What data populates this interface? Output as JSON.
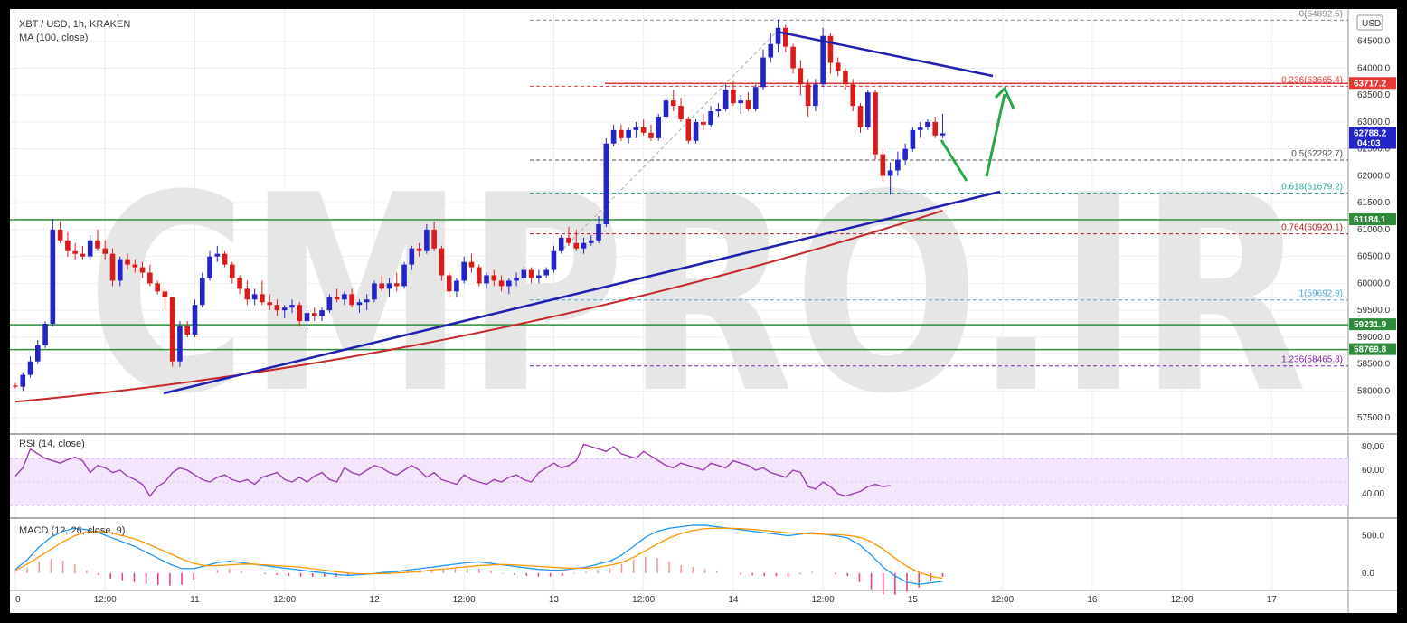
{
  "header": {
    "symbol_line": "XBT / USD, 1h, KRAKEN",
    "ma_line": "MA (100, close)",
    "currency_badge": "USD",
    "rsi_label": "RSI (14, close)",
    "macd_label": "MACD (12, 26, close, 9)"
  },
  "watermark": "CMPRO.IR",
  "chart_data": {
    "type": "candlestick",
    "price_axis": {
      "ylim": [
        57200,
        65100
      ],
      "ticks": [
        57500,
        58000,
        58500,
        59000,
        59500,
        60000,
        60500,
        61000,
        61500,
        62000,
        62500,
        63000,
        63500,
        64000,
        64500
      ],
      "tick_labels": [
        "57500.0",
        "58000.0",
        "58500.0",
        "59000.0",
        "59500.0",
        "60000.0",
        "60500.0",
        "61000.0",
        "61500.0",
        "62000.0",
        "62500.0",
        "63000.0",
        "63500.0",
        "64000.0",
        "64500.0"
      ]
    },
    "time_axis": {
      "labels": [
        "0",
        "12:00",
        "11",
        "12:00",
        "12",
        "12:00",
        "13",
        "12:00",
        "14",
        "12:00",
        "15",
        "12:00",
        "16",
        "12:00",
        "17"
      ],
      "bars_per_label": 12
    },
    "price_tags": [
      {
        "value": 63717.2,
        "text": "63717.2",
        "color": "#e53935"
      },
      {
        "value": 62788.2,
        "text": "62788.2",
        "sub": "04:03",
        "color": "#2424c8"
      },
      {
        "value": 61184.1,
        "text": "61184.1",
        "color": "#2e8b3a"
      },
      {
        "value": 59231.9,
        "text": "59231.9",
        "color": "#2e8b3a"
      },
      {
        "value": 58769.8,
        "text": "58769.8",
        "color": "#2e8b3a"
      }
    ],
    "fibonacci": [
      {
        "ratio": "0",
        "value": 64892.5,
        "text": "0(64892.5)",
        "color": "#888888"
      },
      {
        "ratio": "0.236",
        "value": 63665.4,
        "text": "0.236(63665.4)",
        "color": "#e53935"
      },
      {
        "ratio": "0.5",
        "value": 62292.7,
        "text": "0.5(62292.7)",
        "color": "#555555"
      },
      {
        "ratio": "0.618",
        "value": 61679.2,
        "text": "0.618(61679.2)",
        "color": "#26a69a"
      },
      {
        "ratio": "0.764",
        "value": 60920.1,
        "text": "0.764(60920.1)",
        "color": "#b71c1c"
      },
      {
        "ratio": "1",
        "value": 59692.9,
        "text": "1(59692.9)",
        "color": "#4fa3d8"
      },
      {
        "ratio": "1.236",
        "value": 58465.8,
        "text": "1.236(58465.8)",
        "color": "#7b1fa2"
      }
    ],
    "horizontal_levels": [
      {
        "value": 63717.2,
        "color": "#e53935"
      },
      {
        "value": 61184.1,
        "color": "#2e8b3a"
      },
      {
        "value": 59231.9,
        "color": "#2e8b3a"
      },
      {
        "value": 58769.8,
        "color": "#2e8b3a"
      }
    ],
    "candles": [
      [
        58100,
        58150,
        58050,
        58080
      ],
      [
        58080,
        58350,
        58000,
        58300
      ],
      [
        58300,
        58650,
        58250,
        58550
      ],
      [
        58550,
        58950,
        58500,
        58850
      ],
      [
        58850,
        59300,
        58800,
        59250
      ],
      [
        59250,
        61200,
        59200,
        61000
      ],
      [
        61000,
        61150,
        60750,
        60800
      ],
      [
        60800,
        60950,
        60500,
        60600
      ],
      [
        60600,
        60750,
        60450,
        60550
      ],
      [
        60550,
        60700,
        60450,
        60500
      ],
      [
        60500,
        60900,
        60450,
        60800
      ],
      [
        60800,
        61000,
        60600,
        60650
      ],
      [
        60650,
        60800,
        60450,
        60550
      ],
      [
        60550,
        60650,
        59950,
        60050
      ],
      [
        60050,
        60500,
        59950,
        60450
      ],
      [
        60450,
        60550,
        60250,
        60350
      ],
      [
        60350,
        60450,
        60200,
        60300
      ],
      [
        60300,
        60400,
        60100,
        60200
      ],
      [
        60200,
        60350,
        59950,
        60000
      ],
      [
        60000,
        60050,
        59800,
        59850
      ],
      [
        59850,
        59900,
        59500,
        59750
      ],
      [
        59750,
        59750,
        58450,
        58550
      ],
      [
        58550,
        59300,
        58450,
        59200
      ],
      [
        59200,
        59300,
        59000,
        59050
      ],
      [
        59050,
        59700,
        59000,
        59600
      ],
      [
        59600,
        60200,
        59550,
        60100
      ],
      [
        60100,
        60600,
        60050,
        60500
      ],
      [
        60500,
        60700,
        60400,
        60550
      ],
      [
        60550,
        60600,
        60300,
        60350
      ],
      [
        60350,
        60400,
        60000,
        60100
      ],
      [
        60100,
        60150,
        59800,
        59900
      ],
      [
        59900,
        60050,
        59600,
        59700
      ],
      [
        59700,
        59900,
        59600,
        59800
      ],
      [
        59800,
        60050,
        59600,
        59650
      ],
      [
        59650,
        59800,
        59500,
        59600
      ],
      [
        59600,
        59700,
        59400,
        59500
      ],
      [
        59500,
        59600,
        59350,
        59550
      ],
      [
        59550,
        59700,
        59450,
        59600
      ],
      [
        59600,
        59650,
        59200,
        59300
      ],
      [
        59300,
        59500,
        59200,
        59450
      ],
      [
        59450,
        59550,
        59300,
        59400
      ],
      [
        59400,
        59550,
        59300,
        59500
      ],
      [
        59500,
        59800,
        59450,
        59750
      ],
      [
        59750,
        59900,
        59650,
        59700
      ],
      [
        59700,
        59850,
        59600,
        59800
      ],
      [
        59800,
        59900,
        59550,
        59600
      ],
      [
        59600,
        59700,
        59450,
        59650
      ],
      [
        59650,
        59800,
        59500,
        59700
      ],
      [
        59700,
        60050,
        59650,
        60000
      ],
      [
        60000,
        60150,
        59850,
        59900
      ],
      [
        59900,
        60100,
        59750,
        60000
      ],
      [
        60000,
        60200,
        59850,
        59950
      ],
      [
        59950,
        60400,
        59900,
        60350
      ],
      [
        60350,
        60700,
        60250,
        60650
      ],
      [
        60650,
        60750,
        60500,
        60600
      ],
      [
        60600,
        61100,
        60550,
        61000
      ],
      [
        61000,
        61150,
        60600,
        60650
      ],
      [
        60650,
        60700,
        60050,
        60150
      ],
      [
        60150,
        60200,
        59750,
        59850
      ],
      [
        59850,
        60100,
        59750,
        60050
      ],
      [
        60050,
        60500,
        60000,
        60400
      ],
      [
        60400,
        60550,
        60200,
        60300
      ],
      [
        60300,
        60350,
        59950,
        60000
      ],
      [
        60000,
        60200,
        59900,
        60150
      ],
      [
        60150,
        60250,
        59950,
        60050
      ],
      [
        60050,
        60150,
        59850,
        59950
      ],
      [
        59950,
        60100,
        59800,
        60050
      ],
      [
        60050,
        60200,
        59950,
        60100
      ],
      [
        60100,
        60300,
        60050,
        60250
      ],
      [
        60250,
        60300,
        60000,
        60100
      ],
      [
        60100,
        60250,
        60000,
        60150
      ],
      [
        60150,
        60300,
        60100,
        60250
      ],
      [
        60250,
        60700,
        60200,
        60600
      ],
      [
        60600,
        60900,
        60550,
        60850
      ],
      [
        60850,
        61050,
        60700,
        60750
      ],
      [
        60750,
        61000,
        60600,
        60650
      ],
      [
        60650,
        60850,
        60550,
        60750
      ],
      [
        60750,
        60900,
        60700,
        60800
      ],
      [
        60800,
        61250,
        60750,
        61100
      ],
      [
        61100,
        62700,
        61050,
        62600
      ],
      [
        62600,
        62950,
        62550,
        62850
      ],
      [
        62850,
        62950,
        62650,
        62700
      ],
      [
        62700,
        62900,
        62600,
        62850
      ],
      [
        62850,
        63000,
        62700,
        62900
      ],
      [
        62900,
        63050,
        62750,
        62800
      ],
      [
        62800,
        62950,
        62650,
        62700
      ],
      [
        62700,
        63150,
        62650,
        63100
      ],
      [
        63100,
        63500,
        63000,
        63400
      ],
      [
        63400,
        63600,
        63200,
        63300
      ],
      [
        63300,
        63450,
        63000,
        63050
      ],
      [
        63050,
        63100,
        62600,
        62650
      ],
      [
        62650,
        63050,
        62600,
        63000
      ],
      [
        63000,
        63150,
        62850,
        62950
      ],
      [
        62950,
        63300,
        62900,
        63200
      ],
      [
        63200,
        63350,
        63100,
        63250
      ],
      [
        63250,
        63700,
        63200,
        63600
      ],
      [
        63600,
        63750,
        63300,
        63350
      ],
      [
        63350,
        63500,
        63150,
        63400
      ],
      [
        63400,
        63550,
        63200,
        63250
      ],
      [
        63250,
        63700,
        63200,
        63650
      ],
      [
        63650,
        64350,
        63600,
        64200
      ],
      [
        64200,
        64650,
        64100,
        64450
      ],
      [
        64450,
        64900,
        64300,
        64750
      ],
      [
        64750,
        64800,
        64300,
        64400
      ],
      [
        64400,
        64450,
        63900,
        64000
      ],
      [
        64000,
        64150,
        63500,
        63700
      ],
      [
        63700,
        63800,
        63100,
        63300
      ],
      [
        63300,
        63800,
        63200,
        63700
      ],
      [
        63700,
        64750,
        63650,
        64600
      ],
      [
        64600,
        64650,
        63900,
        64100
      ],
      [
        64100,
        64200,
        63850,
        63950
      ],
      [
        63950,
        64000,
        63600,
        63700
      ],
      [
        63700,
        63800,
        63200,
        63300
      ],
      [
        63300,
        63350,
        62800,
        62900
      ],
      [
        62900,
        63600,
        62850,
        63550
      ],
      [
        63550,
        63600,
        62300,
        62400
      ],
      [
        62400,
        62500,
        61900,
        62000
      ],
      [
        62000,
        62250,
        61650,
        62100
      ],
      [
        62100,
        62450,
        62000,
        62300
      ],
      [
        62300,
        62600,
        62200,
        62500
      ],
      [
        62500,
        62900,
        62450,
        62850
      ],
      [
        62850,
        63000,
        62700,
        62900
      ],
      [
        62900,
        63050,
        62850,
        63000
      ],
      [
        63000,
        63100,
        62700,
        62750
      ],
      [
        62750,
        63150,
        62700,
        62790
      ]
    ],
    "ma100": {
      "start": 57800,
      "end": 61350
    },
    "rsi": {
      "ylim": [
        20,
        90
      ],
      "ticks": [
        40,
        60,
        80
      ],
      "tick_labels": [
        "40.00",
        "60.00",
        "80.00"
      ],
      "band": [
        30,
        70
      ],
      "values": [
        55,
        62,
        78,
        74,
        70,
        68,
        66,
        69,
        71,
        68,
        58,
        64,
        62,
        58,
        60,
        55,
        52,
        48,
        38,
        46,
        50,
        58,
        62,
        60,
        56,
        52,
        50,
        54,
        56,
        52,
        50,
        52,
        48,
        54,
        56,
        58,
        52,
        50,
        54,
        50,
        55,
        58,
        52,
        50,
        62,
        58,
        56,
        60,
        64,
        62,
        58,
        56,
        60,
        64,
        60,
        54,
        58,
        52,
        50,
        48,
        56,
        52,
        50,
        48,
        52,
        50,
        54,
        56,
        52,
        50,
        58,
        62,
        66,
        62,
        64,
        68,
        82,
        80,
        78,
        76,
        80,
        74,
        72,
        70,
        76,
        72,
        68,
        64,
        62,
        66,
        64,
        62,
        60,
        66,
        64,
        62,
        68,
        66,
        64,
        60,
        62,
        58,
        56,
        54,
        60,
        58,
        46,
        44,
        50,
        46,
        40,
        38,
        40,
        42,
        46,
        48,
        46,
        47
      ]
    },
    "macd": {
      "ylim": [
        -220,
        700
      ],
      "ticks": [
        0,
        500
      ],
      "tick_labels": [
        "0.0",
        "500.0"
      ],
      "macd_line": [
        50,
        180,
        350,
        480,
        560,
        600,
        580,
        540,
        480,
        420,
        360,
        280,
        200,
        120,
        60,
        60,
        100,
        140,
        160,
        140,
        120,
        100,
        80,
        60,
        40,
        20,
        0,
        -20,
        -30,
        -20,
        -10,
        10,
        20,
        40,
        60,
        80,
        100,
        120,
        140,
        150,
        130,
        110,
        90,
        70,
        50,
        40,
        40,
        60,
        80,
        120,
        160,
        240,
        360,
        480,
        560,
        600,
        620,
        640,
        640,
        620,
        600,
        580,
        560,
        540,
        520,
        500,
        520,
        540,
        520,
        500,
        470,
        380,
        240,
        80,
        -40,
        -120,
        -150,
        -130,
        -110
      ],
      "signal_line": [
        40,
        120,
        220,
        320,
        420,
        500,
        550,
        560,
        540,
        500,
        460,
        400,
        330,
        260,
        190,
        130,
        100,
        100,
        110,
        120,
        120,
        110,
        100,
        90,
        80,
        60,
        40,
        20,
        0,
        -10,
        -10,
        -5,
        0,
        10,
        20,
        40,
        55,
        70,
        85,
        100,
        110,
        115,
        110,
        100,
        90,
        80,
        70,
        65,
        65,
        80,
        105,
        140,
        210,
        300,
        390,
        470,
        530,
        570,
        595,
        600,
        600,
        595,
        585,
        570,
        555,
        540,
        530,
        525,
        520,
        515,
        505,
        480,
        420,
        320,
        200,
        90,
        10,
        -40,
        -70
      ],
      "hist_scale": 1.2
    }
  }
}
